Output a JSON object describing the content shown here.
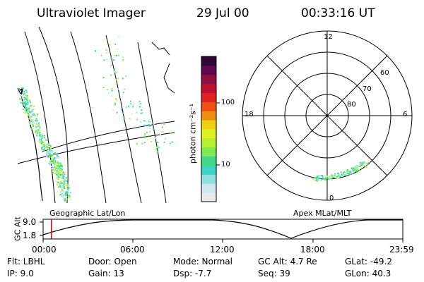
{
  "header": {
    "title": "Ultraviolet Imager",
    "date": "29 Jul 00",
    "time": "00:33:16 UT"
  },
  "panels": {
    "geographic_label": "Geographic Lat/Lon",
    "apex_label": "Apex MLat/MLT"
  },
  "colorbar": {
    "unit_label": "photon cm⁻²s⁻¹",
    "tick_100": "100",
    "tick_10": "10",
    "colors": [
      "#e9e9e9",
      "#cde8f0",
      "#8fe0e0",
      "#3fd2c8",
      "#41d98a",
      "#7ee850",
      "#b8f030",
      "#e0f020",
      "#f0d010",
      "#f09010",
      "#f05010",
      "#e02020",
      "#c01030",
      "#901040",
      "#600850",
      "#300838"
    ]
  },
  "polar": {
    "mlt_12": "12",
    "mlt_18": "18",
    "mlt_6": "6",
    "mlt_0": "0",
    "lat_60": "60",
    "lat_70": "70",
    "lat_80": "80"
  },
  "timeline": {
    "axis_label": "GC Alt",
    "alt_high": "9.0",
    "alt_low": "1.8",
    "t0": "00:00",
    "t1": "06:00",
    "t2": "12:00",
    "t3": "18:00",
    "t4": "23:59",
    "marker_fraction": 0.023,
    "marker_color": "#e00000"
  },
  "info": {
    "filter": "Flt: LBHL",
    "ip": "IP:  9.0",
    "door": "Door: Open",
    "gain": "Gain: 13",
    "mode": "Mode: Normal",
    "dsp": "Dsp:    -7.7",
    "gc_alt": "GC Alt: 4.7 Re",
    "seq": "Seq: 39",
    "glat": "GLat: -49.2",
    "glon": "GLon: 40.3"
  }
}
